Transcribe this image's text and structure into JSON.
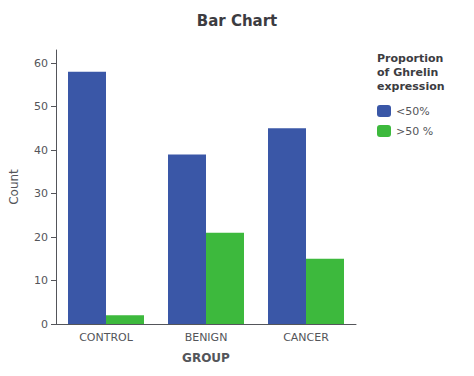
{
  "chart_data": {
    "type": "bar",
    "title": "Bar Chart",
    "xlabel": "GROUP",
    "ylabel": "Count",
    "categories": [
      "CONTROL",
      "BENIGN",
      "CANCER"
    ],
    "series": [
      {
        "name": "<50%",
        "color": "#3a57a7",
        "values": [
          58,
          39,
          45
        ]
      },
      {
        "name": ">50 %",
        "color": "#3db93d",
        "values": [
          2,
          21,
          15
        ]
      }
    ],
    "legend_title": "Proportion\nof Ghrelin\nexpression",
    "legend": "right",
    "ylim": [
      0,
      63
    ],
    "yticks": [
      0,
      10,
      20,
      30,
      40,
      50,
      60
    ],
    "grid": false
  }
}
